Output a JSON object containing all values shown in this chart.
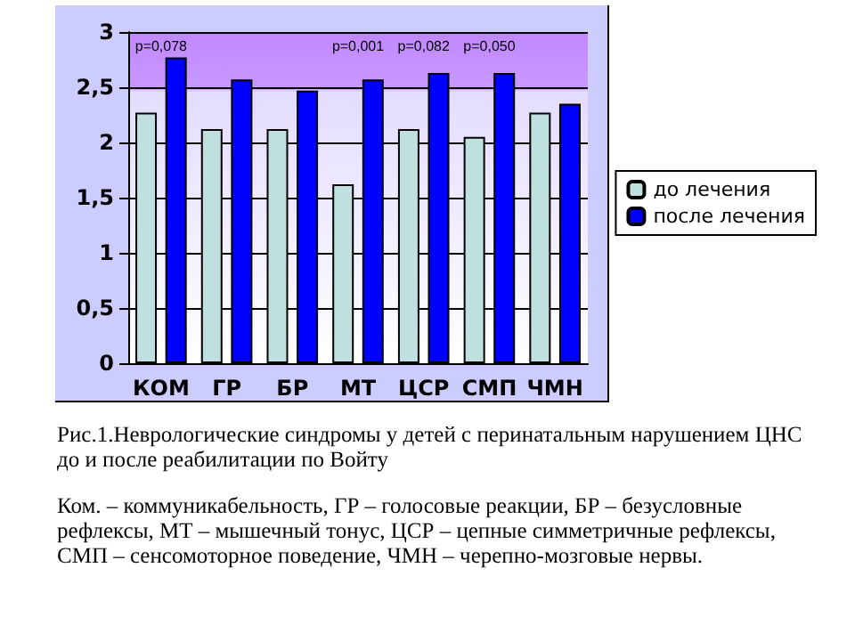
{
  "chart_data": {
    "type": "bar",
    "categories": [
      "КОМ",
      "ГР",
      "БР",
      "МТ",
      "ЦСР",
      "СМП",
      "ЧМН"
    ],
    "series": [
      {
        "name": "до лечения",
        "color": "#c0e0e0",
        "values": [
          2.27,
          2.12,
          2.12,
          1.62,
          2.12,
          2.05,
          2.27
        ]
      },
      {
        "name": "после лечения",
        "color": "#0000ff",
        "values": [
          2.77,
          2.57,
          2.47,
          2.57,
          2.63,
          2.63,
          2.35
        ]
      }
    ],
    "ylim": [
      0,
      3
    ],
    "yticks": [
      0,
      {
        "value": 0.5,
        "label": "0,5"
      },
      1,
      {
        "value": 1.5,
        "label": "1,5"
      },
      2,
      {
        "value": 2.5,
        "label": "2,5"
      },
      3
    ],
    "grid": "y",
    "legend": "right",
    "annotations": [
      "p=0,078",
      "p=0,001",
      "p=0,082",
      "p=0,050",
      "Рис.1.Неврологические  синдромы у детей с перинатальным  нарушением ЦНС    до и после реабилитации  по Войту",
      "Ком. – коммуникабельность, ГР – голосовые реакции, БР – безусловные рефлексы, МТ – мышечный тонус, ЦСР – цепные симметричные рефлексы, СМП – сенсомоторное поведение, ЧМН – черепно-мозговые нервы."
    ]
  }
}
